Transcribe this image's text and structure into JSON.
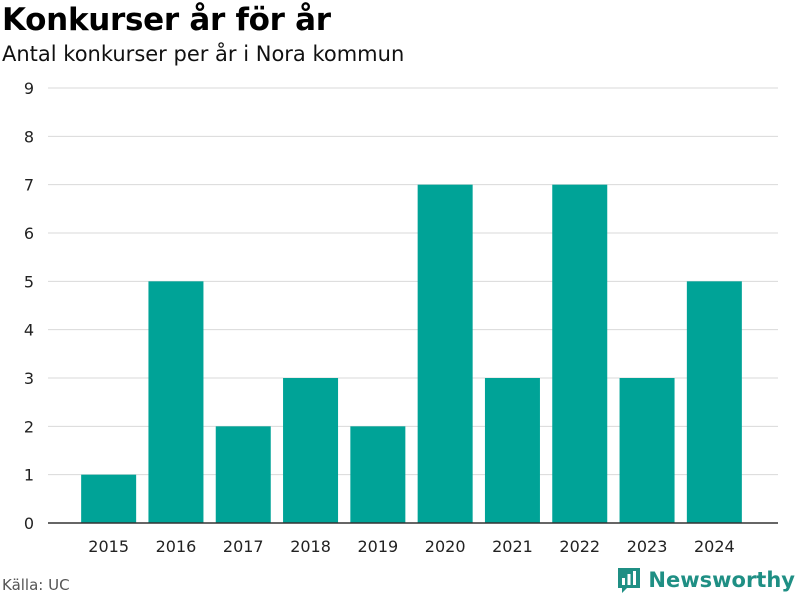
{
  "header": {
    "title": "Konkurser år för år",
    "subtitle": "Antal konkurser per år i Nora kommun"
  },
  "footer": {
    "source": "Källa: UC",
    "brand": "Newsworthy"
  },
  "colors": {
    "bar": "#00a397",
    "grid": "#d9d9d9",
    "axis": "#333333",
    "brand": "#1f8f84"
  },
  "icons": {
    "brand_logo": "bar-chart-logo-icon"
  },
  "chart_data": {
    "type": "bar",
    "categories": [
      "2015",
      "2016",
      "2017",
      "2018",
      "2019",
      "2020",
      "2021",
      "2022",
      "2023",
      "2024"
    ],
    "values": [
      1,
      5,
      2,
      3,
      2,
      7,
      3,
      7,
      3,
      5
    ],
    "title": "Konkurser år för år",
    "subtitle": "Antal konkurser per år i Nora kommun",
    "xlabel": "",
    "ylabel": "",
    "ylim": [
      0,
      9
    ],
    "yticks": [
      0,
      1,
      2,
      3,
      4,
      5,
      6,
      7,
      8,
      9
    ],
    "grid": true,
    "legend": "none"
  }
}
